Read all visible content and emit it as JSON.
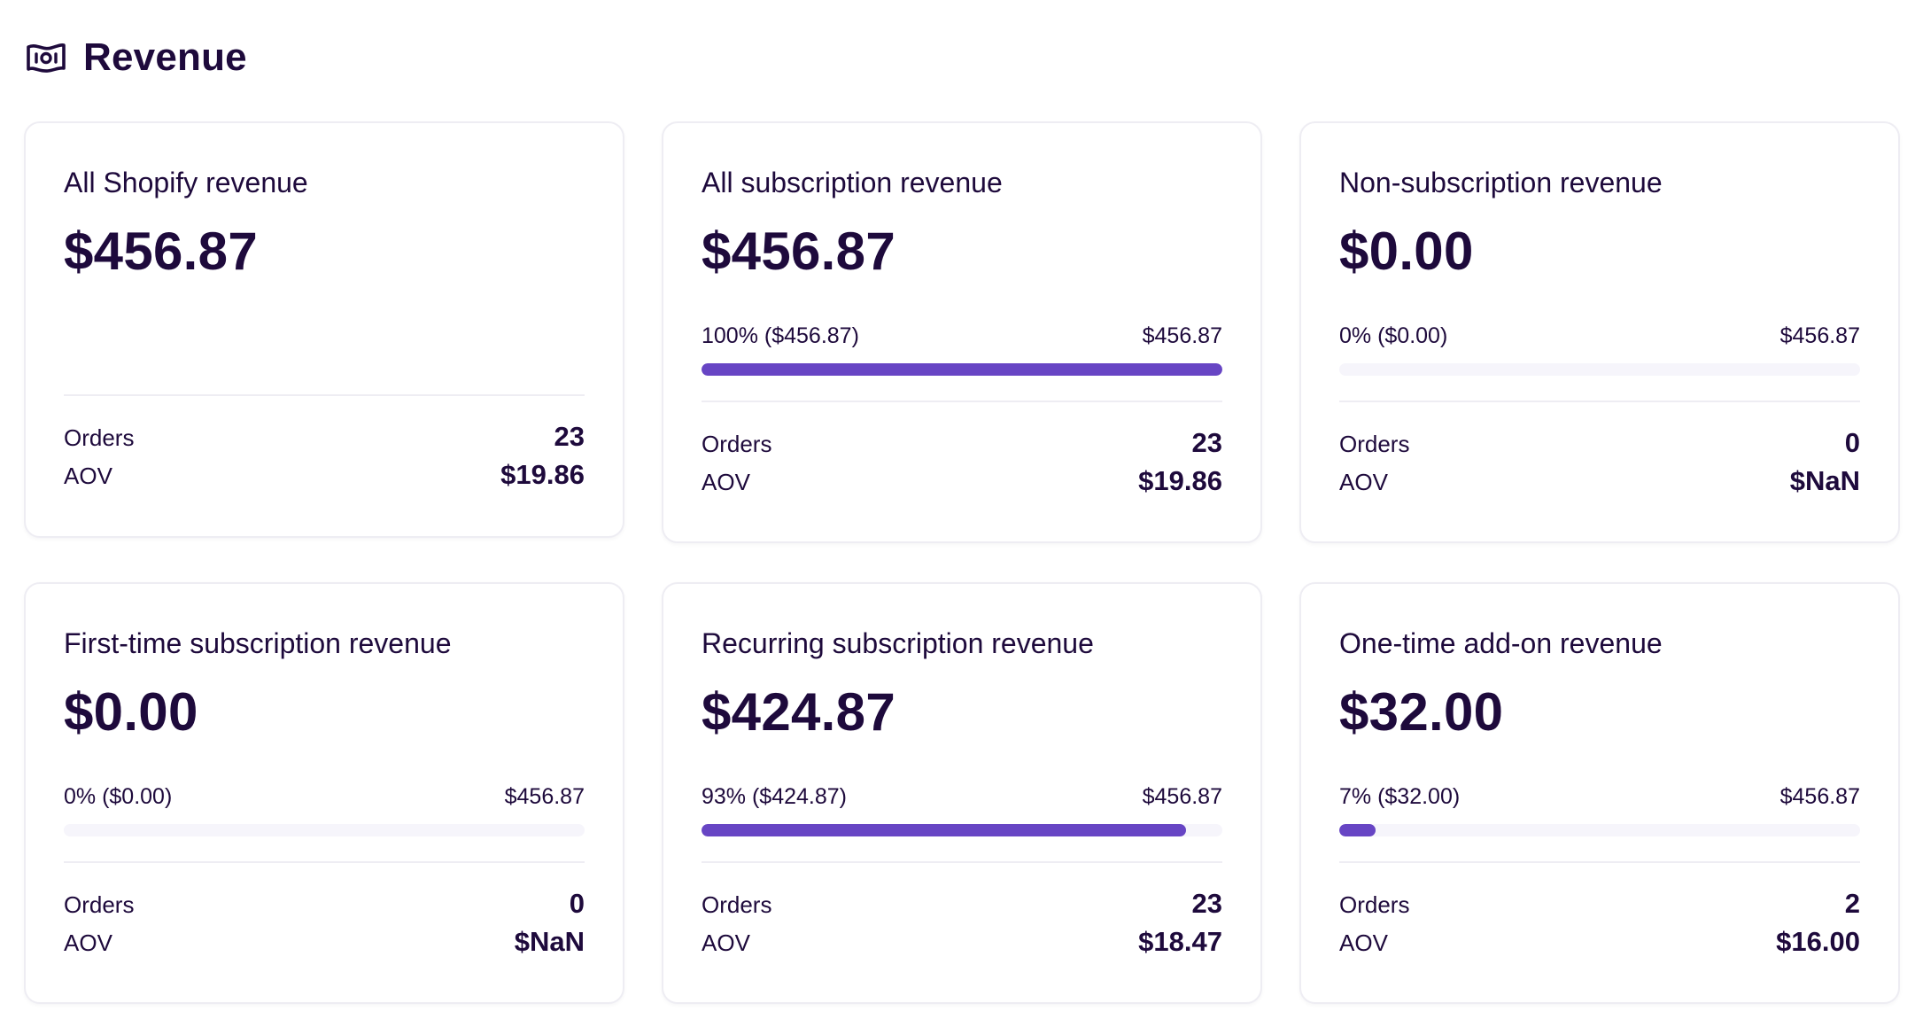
{
  "header": {
    "title": "Revenue",
    "icon": "money-bill-icon"
  },
  "colors": {
    "text": "#1e0a3c",
    "bar_fill": "#6745c4",
    "bar_track": "#f6f5fb",
    "border": "#eeedf3"
  },
  "labels": {
    "orders": "Orders",
    "aov": "AOV"
  },
  "cards": [
    {
      "title": "All Shopify revenue",
      "value": "$456.87",
      "orders": "23",
      "aov": "$19.86"
    },
    {
      "title": "All subscription revenue",
      "value": "$456.87",
      "progress_label": "100% ($456.87)",
      "progress_total": "$456.87",
      "progress_fraction": 1.0,
      "orders": "23",
      "aov": "$19.86"
    },
    {
      "title": "Non-subscription revenue",
      "value": "$0.00",
      "progress_label": "0% ($0.00)",
      "progress_total": "$456.87",
      "progress_fraction": 0.0,
      "orders": "0",
      "aov": "$NaN"
    },
    {
      "title": "First-time subscription revenue",
      "value": "$0.00",
      "progress_label": "0% ($0.00)",
      "progress_total": "$456.87",
      "progress_fraction": 0.0,
      "orders": "0",
      "aov": "$NaN"
    },
    {
      "title": "Recurring subscription revenue",
      "value": "$424.87",
      "progress_label": "93% ($424.87)",
      "progress_total": "$456.87",
      "progress_fraction": 0.93,
      "orders": "23",
      "aov": "$18.47"
    },
    {
      "title": "One-time add-on revenue",
      "value": "$32.00",
      "progress_label": "7% ($32.00)",
      "progress_total": "$456.87",
      "progress_fraction": 0.07,
      "orders": "2",
      "aov": "$16.00"
    }
  ]
}
